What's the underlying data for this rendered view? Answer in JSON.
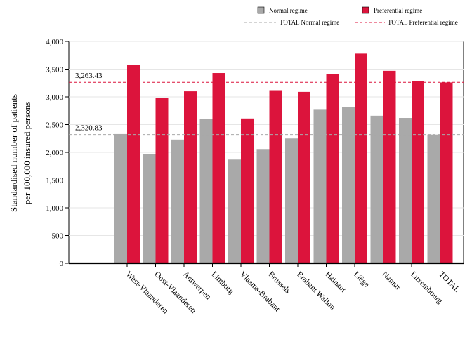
{
  "chart_data": {
    "type": "bar",
    "title": "",
    "xlabel": "",
    "ylabel": "Standardised number of patients per 100,000 insured persons",
    "ylabel_lines": [
      "Standardised number of patients",
      "per 100,000 insured persons"
    ],
    "ylim": [
      0,
      4000
    ],
    "yticks": [
      0,
      500,
      1000,
      1500,
      2000,
      2500,
      3000,
      3500,
      4000
    ],
    "ytick_labels": [
      "0",
      "500",
      "1,000",
      "1,500",
      "2,000",
      "2,500",
      "3,000",
      "3,500",
      "4,000"
    ],
    "grid": true,
    "legend_position": "top",
    "categories": [
      "West-Vlaanderen",
      "Oost-Vlaanderen",
      "Antwerpen",
      "Limburg",
      "Vlaams-Brabant",
      "Brussels",
      "Brabant Wallon",
      "Hainaut",
      "Liège",
      "Namur",
      "Luxembourg",
      "TOTAL"
    ],
    "series": [
      {
        "name": "Normal regime",
        "color": "#a9a9a9",
        "values": [
          2330,
          1970,
          2230,
          2600,
          1870,
          2060,
          2250,
          2780,
          2820,
          2660,
          2620,
          2320
        ]
      },
      {
        "name": "Preferential regime",
        "color": "#dc143c",
        "values": [
          3580,
          2980,
          3100,
          3430,
          2610,
          3120,
          3090,
          3410,
          3780,
          3470,
          3290,
          3260
        ]
      }
    ],
    "reference_lines": [
      {
        "name": "TOTAL Normal regime",
        "value": 2320.83,
        "label": "2,320.83",
        "color": "#a9a9a9"
      },
      {
        "name": "TOTAL Preferential regime",
        "value": 3263.43,
        "label": "3,263.43",
        "color": "#dc143c"
      }
    ]
  }
}
